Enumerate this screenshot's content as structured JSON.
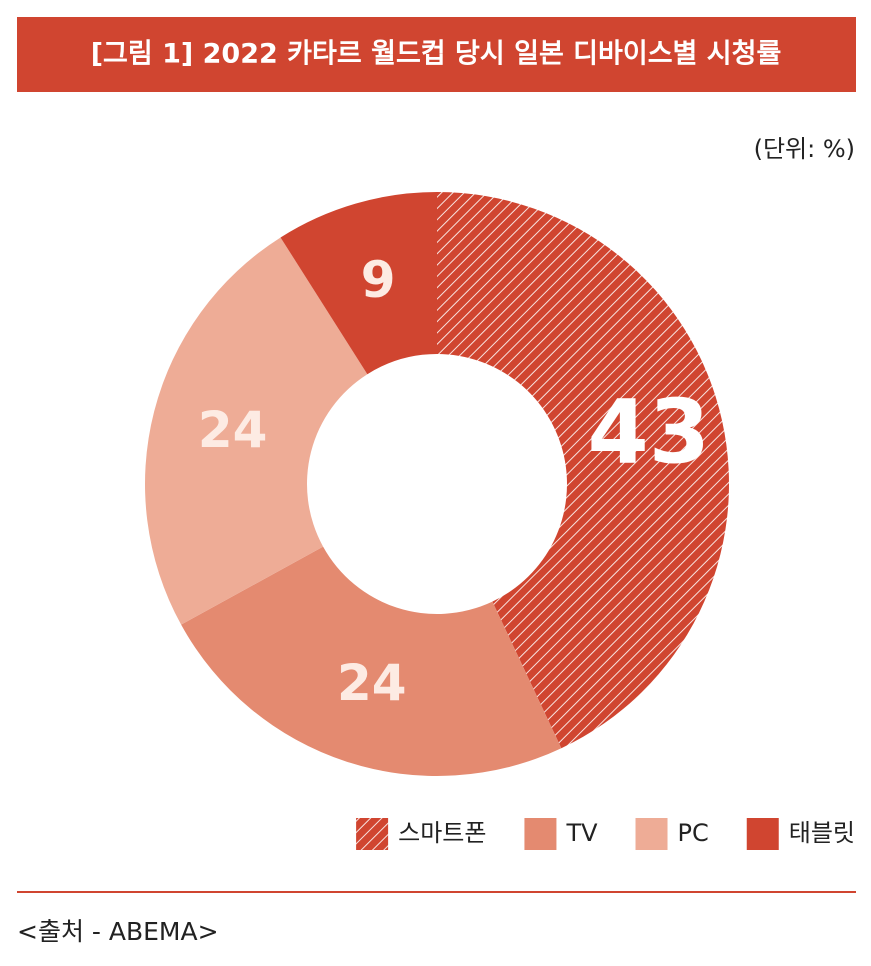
{
  "chart_data": {
    "type": "donut",
    "title": "[그림 1] 2022 카타르 월드컵 당시 일본 디바이스별 시청률",
    "unit_label": "(단위: %)",
    "source": "<출처 - ABEMA>",
    "categories": [
      "스마트폰",
      "TV",
      "PC",
      "태블릿"
    ],
    "values": [
      43,
      24,
      24,
      9
    ],
    "colors": [
      "#d04530",
      "#e48a70",
      "#eeac96",
      "#d04530"
    ],
    "hatched": [
      true,
      false,
      false,
      false
    ]
  }
}
